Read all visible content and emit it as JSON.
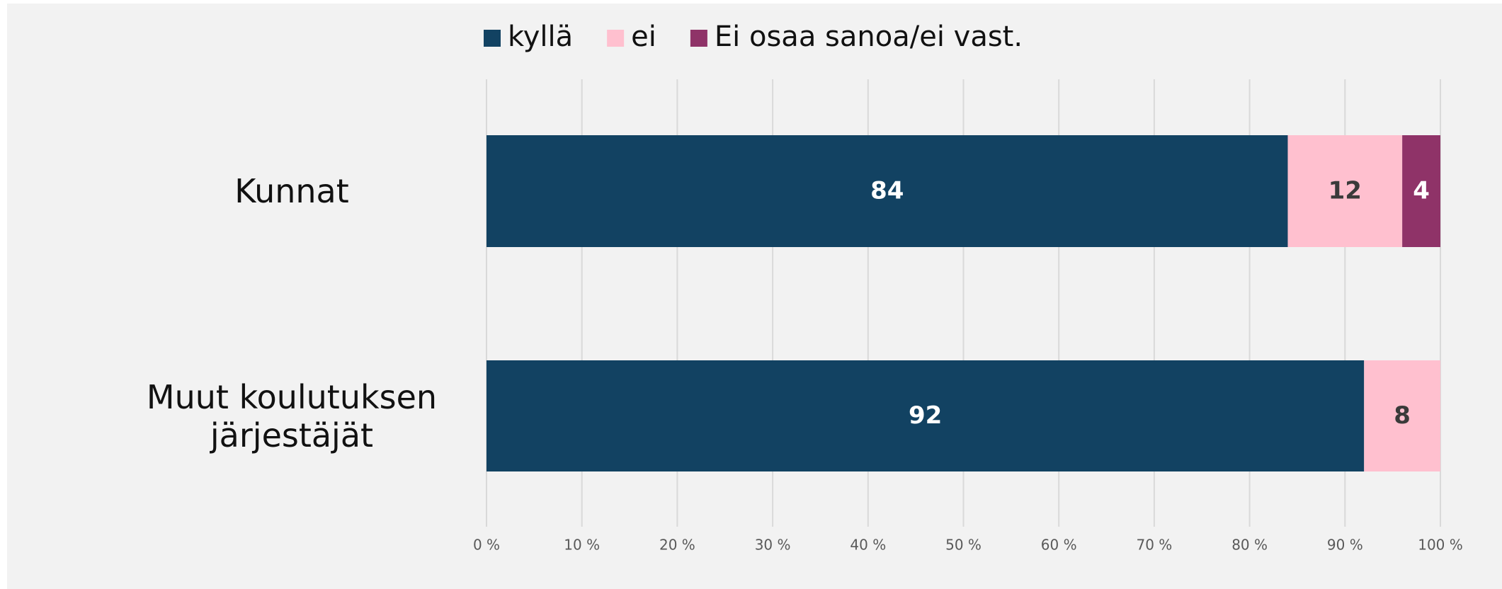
{
  "chart_data": {
    "type": "stacked-bar-horizontal",
    "categories": [
      "Kunnat",
      "Muut koulutuksen järjestäjät"
    ],
    "series": [
      {
        "name": "kyllä",
        "color": "#124262",
        "values": [
          84,
          92
        ]
      },
      {
        "name": "ei",
        "color": "#ffc0cf",
        "values": [
          12,
          8
        ]
      },
      {
        "name": "Ei osaa sanoa/ei vast.",
        "color": "#8f3368",
        "values": [
          4,
          null
        ]
      }
    ],
    "xlim": [
      0,
      100
    ],
    "xticks": [
      {
        "value": 0,
        "label": "0 %"
      },
      {
        "value": 10,
        "label": "10 %"
      },
      {
        "value": 20,
        "label": "20 %"
      },
      {
        "value": 30,
        "label": "30 %"
      },
      {
        "value": 40,
        "label": "40 %"
      },
      {
        "value": 50,
        "label": "50 %"
      },
      {
        "value": 60,
        "label": "60 %"
      },
      {
        "value": 70,
        "label": "70 %"
      },
      {
        "value": 80,
        "label": "80 %"
      },
      {
        "value": 90,
        "label": "90 %"
      },
      {
        "value": 100,
        "label": "100 %"
      }
    ],
    "grid": true,
    "legend": "top"
  }
}
